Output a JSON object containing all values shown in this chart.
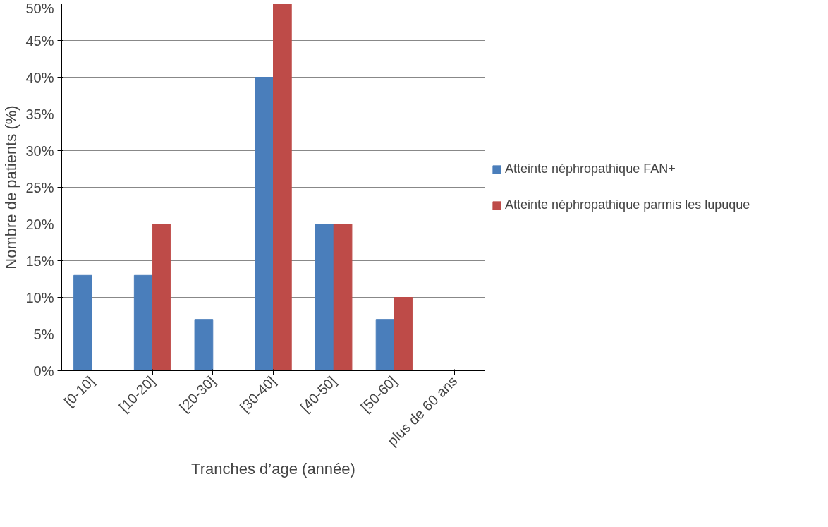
{
  "chart_data": {
    "type": "bar",
    "xlabel": "Tranches d’age (année)",
    "ylabel": "Nombre de patients (%)",
    "categories": [
      "[0-10]",
      "[10-20]",
      "[20-30]",
      "[30-40]",
      "[40-50]",
      "[50-60]",
      "plus de 60 ans"
    ],
    "series": [
      {
        "name": "Atteinte néphropathique FAN+",
        "color": "#4a7ebb",
        "values": [
          13,
          13,
          7,
          40,
          20,
          7,
          0
        ]
      },
      {
        "name": "Atteinte néphropathique parmis les lupuque",
        "color": "#be4b48",
        "values": [
          0,
          20,
          0,
          50,
          20,
          10,
          0
        ]
      }
    ],
    "ylim": [
      0,
      50
    ],
    "yticks": [
      {
        "value": 0,
        "label": "0%"
      },
      {
        "value": 5,
        "label": "5%"
      },
      {
        "value": 10,
        "label": "10%"
      },
      {
        "value": 15,
        "label": "15%"
      },
      {
        "value": 20,
        "label": "20%"
      },
      {
        "value": 25,
        "label": "25%"
      },
      {
        "value": 30,
        "label": "30%"
      },
      {
        "value": 35,
        "label": "35%"
      },
      {
        "value": 40,
        "label": "40%"
      },
      {
        "value": 45,
        "label": "45%"
      },
      {
        "value": 50,
        "label": "50%"
      }
    ],
    "grid": "y",
    "legend": "right"
  }
}
